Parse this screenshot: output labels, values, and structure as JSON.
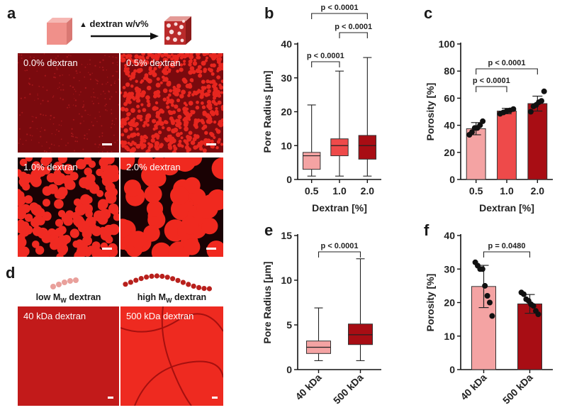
{
  "panel_letters": [
    "a",
    "b",
    "c",
    "d",
    "e",
    "f"
  ],
  "panel_a": {
    "header_label": "dextran w/v%",
    "arrow_glyph": "▲",
    "images": [
      {
        "label": "0.0% dextran"
      },
      {
        "label": "0.5% dextran"
      },
      {
        "label": "1.0% dextran"
      },
      {
        "label": "2.0% dextran"
      }
    ]
  },
  "panel_d": {
    "low_label_main": "low M",
    "low_label_sub": "W",
    "low_label_tail": " dextran",
    "high_label_main": "high M",
    "high_label_sub": "W",
    "high_label_tail": " dextran",
    "images": [
      {
        "label": "40 kDa dextran"
      },
      {
        "label": "500 kDa dextran"
      }
    ]
  },
  "colors": {
    "light": "#f4a3a3",
    "medium": "#ee4a4a",
    "dark": "#a80d14",
    "micro_bg": "#7a0a0e",
    "micro_fg": "#e8261f"
  },
  "chart_data": [
    {
      "id": "b",
      "type": "box",
      "categories": [
        "0.5",
        "1.0",
        "2.0"
      ],
      "xlabel": "Dextran [%]",
      "ylabel": "Pore Radius [μm]",
      "ylim": [
        0,
        40
      ],
      "yticks": [
        0,
        10,
        20,
        30,
        40
      ],
      "series": [
        {
          "category": "0.5",
          "min": 1,
          "q1": 3,
          "median": 7,
          "q3": 8,
          "max": 22,
          "color": "light"
        },
        {
          "category": "1.0",
          "min": 1,
          "q1": 7,
          "median": 10,
          "q3": 12,
          "max": 32,
          "color": "medium"
        },
        {
          "category": "2.0",
          "min": 1,
          "q1": 6,
          "median": 10,
          "q3": 13,
          "max": 36,
          "color": "dark"
        }
      ],
      "annotations": [
        {
          "text": "p < 0.0001",
          "from": 0,
          "to": 2,
          "level": 2
        },
        {
          "text": "p < 0.0001",
          "from": 1,
          "to": 2,
          "level": 1
        },
        {
          "text": "p < 0.0001",
          "from": 0,
          "to": 1,
          "level": 0
        }
      ]
    },
    {
      "id": "c",
      "type": "bar",
      "categories": [
        "0.5",
        "1.0",
        "2.0"
      ],
      "xlabel": "Dextran [%]",
      "ylabel": "Porosity [%]",
      "ylim": [
        0,
        100
      ],
      "yticks": [
        0,
        20,
        40,
        60,
        80,
        100
      ],
      "series": [
        {
          "category": "0.5",
          "mean": 37.5,
          "sd": 4.5,
          "points": [
            33,
            35,
            38,
            38,
            40,
            43
          ],
          "color": "light"
        },
        {
          "category": "1.0",
          "mean": 50.5,
          "sd": 2.0,
          "points": [
            48.5,
            49.5,
            50.5,
            51,
            52
          ],
          "color": "medium"
        },
        {
          "category": "2.0",
          "mean": 56,
          "sd": 5.5,
          "points": [
            50,
            54,
            55,
            57,
            58,
            65
          ],
          "color": "dark"
        }
      ],
      "annotations": [
        {
          "text": "p < 0.0001",
          "from": 0,
          "to": 2,
          "level": 1
        },
        {
          "text": "p < 0.0001",
          "from": 0,
          "to": 1,
          "level": 0
        }
      ]
    },
    {
      "id": "e",
      "type": "box",
      "categories": [
        "40 kDa",
        "500 kDa"
      ],
      "xlabel": "",
      "ylabel": "Pore Radius [μm]",
      "ylim": [
        0,
        15
      ],
      "yticks": [
        0,
        5,
        10,
        15
      ],
      "rotate_ticks": true,
      "series": [
        {
          "category": "40 kDa",
          "min": 1,
          "q1": 1.8,
          "median": 2.5,
          "q3": 3.2,
          "max": 6.9,
          "color": "light"
        },
        {
          "category": "500 kDa",
          "min": 1,
          "q1": 2.8,
          "median": 3.9,
          "q3": 5.1,
          "max": 12.4,
          "color": "dark"
        }
      ],
      "annotations": [
        {
          "text": "p < 0.0001",
          "from": 0,
          "to": 1,
          "level": 0
        }
      ]
    },
    {
      "id": "f",
      "type": "bar",
      "categories": [
        "40 kDa",
        "500 kDa"
      ],
      "xlabel": "",
      "ylabel": "Porosity [%]",
      "ylim": [
        0,
        40
      ],
      "yticks": [
        0,
        10,
        20,
        30,
        40
      ],
      "rotate_ticks": true,
      "series": [
        {
          "category": "40 kDa",
          "mean": 24.8,
          "sd": 6.3,
          "points": [
            32,
            31,
            30,
            30,
            25,
            22,
            20,
            16
          ],
          "color": "light"
        },
        {
          "category": "500 kDa",
          "mean": 19.6,
          "sd": 2.8,
          "points": [
            23,
            22.5,
            21,
            20.5,
            19.5,
            19,
            17.5,
            16.5
          ],
          "color": "dark"
        }
      ],
      "annotations": [
        {
          "text": "p = 0.0480",
          "from": 0,
          "to": 1,
          "level": 0
        }
      ]
    }
  ]
}
